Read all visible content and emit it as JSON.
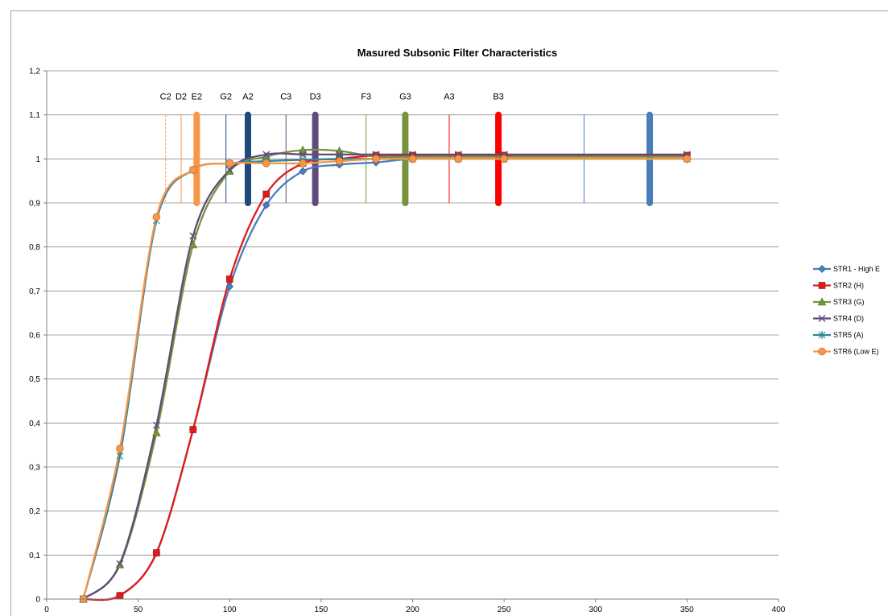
{
  "chart_data": {
    "type": "line",
    "title": "Masured Subsonic Filter Characteristics",
    "xlabel": "",
    "ylabel": "",
    "xlim": [
      0,
      400
    ],
    "ylim": [
      0,
      1.2
    ],
    "x_ticks": [
      0,
      50,
      100,
      150,
      200,
      250,
      300,
      350,
      400
    ],
    "x_tick_labels": [
      "0",
      "50",
      "100",
      "150",
      "200",
      "250",
      "300",
      "350",
      "400"
    ],
    "y_ticks": [
      0,
      0.1,
      0.2,
      0.3,
      0.4,
      0.5,
      0.6,
      0.7,
      0.8,
      0.9,
      1,
      1.1,
      1.2
    ],
    "y_tick_labels": [
      "0",
      "0,1",
      "0,2",
      "0,3",
      "0,4",
      "0,5",
      "0,6",
      "0,7",
      "0,8",
      "0,9",
      "1",
      "1,1",
      "1,2"
    ],
    "grid": true,
    "legend_position": "right",
    "series": [
      {
        "name": "STR1 - High E",
        "color": "#4a7ebb",
        "marker": "diamond",
        "x": [
          20,
          40,
          60,
          80,
          100,
          120,
          140,
          160,
          180,
          200,
          225,
          250,
          350
        ],
        "y": [
          0,
          0.008,
          0.105,
          0.385,
          0.71,
          0.895,
          0.972,
          0.987,
          0.992,
          1.0,
          1.0,
          1.0,
          1.0
        ]
      },
      {
        "name": "STR2 (H)",
        "color": "#e01b1b",
        "marker": "square",
        "x": [
          20,
          40,
          60,
          80,
          100,
          120,
          140,
          160,
          180,
          200,
          225,
          250,
          350
        ],
        "y": [
          0,
          0.008,
          0.105,
          0.385,
          0.727,
          0.92,
          0.99,
          1.0,
          1.008,
          1.008,
          1.008,
          1.008,
          1.008
        ]
      },
      {
        "name": "STR3 (G)",
        "color": "#77933c",
        "marker": "triangle",
        "x": [
          20,
          40,
          60,
          80,
          100,
          120,
          140,
          160,
          180,
          200,
          225,
          250,
          350
        ],
        "y": [
          0,
          0.078,
          0.378,
          0.805,
          0.972,
          1.005,
          1.02,
          1.018,
          1.005,
          1.005,
          1.005,
          1.005,
          1.005
        ]
      },
      {
        "name": "STR4 (D)",
        "color": "#604a7b",
        "marker": "x",
        "x": [
          20,
          40,
          60,
          80,
          100,
          120,
          140,
          160,
          180,
          200,
          225,
          250,
          350
        ],
        "y": [
          0,
          0.08,
          0.395,
          0.825,
          0.975,
          1.01,
          1.01,
          1.01,
          1.01,
          1.01,
          1.01,
          1.01,
          1.01
        ]
      },
      {
        "name": "STR5 (A)",
        "color": "#31859c",
        "marker": "star",
        "x": [
          20,
          40,
          60,
          80,
          100,
          120,
          140,
          160,
          180,
          200,
          225,
          250,
          350
        ],
        "y": [
          0,
          0.325,
          0.86,
          0.975,
          0.99,
          0.995,
          0.998,
          1.0,
          1.0,
          1.0,
          1.0,
          1.0,
          1.0
        ]
      },
      {
        "name": "STR6 (Low E)",
        "color": "#f79646",
        "marker": "circle",
        "x": [
          20,
          40,
          60,
          80,
          100,
          120,
          140,
          160,
          180,
          200,
          225,
          250,
          350
        ],
        "y": [
          0,
          0.342,
          0.868,
          0.975,
          0.99,
          0.99,
          0.99,
          0.995,
          1.0,
          1.0,
          1.0,
          1.0,
          1.0
        ]
      }
    ],
    "note_markers": [
      {
        "label": "C2",
        "x": 65,
        "y0": 0.9,
        "y1": 1.1,
        "color": "#f79646",
        "style": "dashed",
        "weight": "thin"
      },
      {
        "label": "D2",
        "x": 73.5,
        "y0": 0.9,
        "y1": 1.1,
        "color": "#f79646",
        "style": "solid",
        "weight": "thin"
      },
      {
        "label": "E2",
        "x": 82,
        "y0": 0.9,
        "y1": 1.1,
        "color": "#f79646",
        "style": "solid",
        "weight": "thick"
      },
      {
        "label": "G2",
        "x": 98,
        "y0": 0.9,
        "y1": 1.1,
        "color": "#1f497d",
        "style": "solid",
        "weight": "thin"
      },
      {
        "label": "A2",
        "x": 110,
        "y0": 0.9,
        "y1": 1.1,
        "color": "#1f497d",
        "style": "solid",
        "weight": "thick"
      },
      {
        "label": "C3",
        "x": 130.8,
        "y0": 0.9,
        "y1": 1.1,
        "color": "#604a7b",
        "style": "solid",
        "weight": "thin"
      },
      {
        "label": "D3",
        "x": 146.8,
        "y0": 0.9,
        "y1": 1.1,
        "color": "#604a7b",
        "style": "solid",
        "weight": "thick"
      },
      {
        "label": "F3",
        "x": 174.6,
        "y0": 0.9,
        "y1": 1.1,
        "color": "#77933c",
        "style": "solid",
        "weight": "thin"
      },
      {
        "label": "G3",
        "x": 196,
        "y0": 0.9,
        "y1": 1.1,
        "color": "#77933c",
        "style": "solid",
        "weight": "thick"
      },
      {
        "label": "A3",
        "x": 220,
        "y0": 0.9,
        "y1": 1.1,
        "color": "#ff0000",
        "style": "solid",
        "weight": "thin"
      },
      {
        "label": "B3",
        "x": 246.9,
        "y0": 0.9,
        "y1": 1.1,
        "color": "#ff0000",
        "style": "solid",
        "weight": "thick"
      },
      {
        "label": "",
        "x": 293.7,
        "y0": 0.9,
        "y1": 1.1,
        "color": "#4a7ebb",
        "style": "solid",
        "weight": "thin"
      },
      {
        "label": "",
        "x": 329.6,
        "y0": 0.9,
        "y1": 1.1,
        "color": "#4a7ebb",
        "style": "solid",
        "weight": "thick"
      }
    ]
  }
}
